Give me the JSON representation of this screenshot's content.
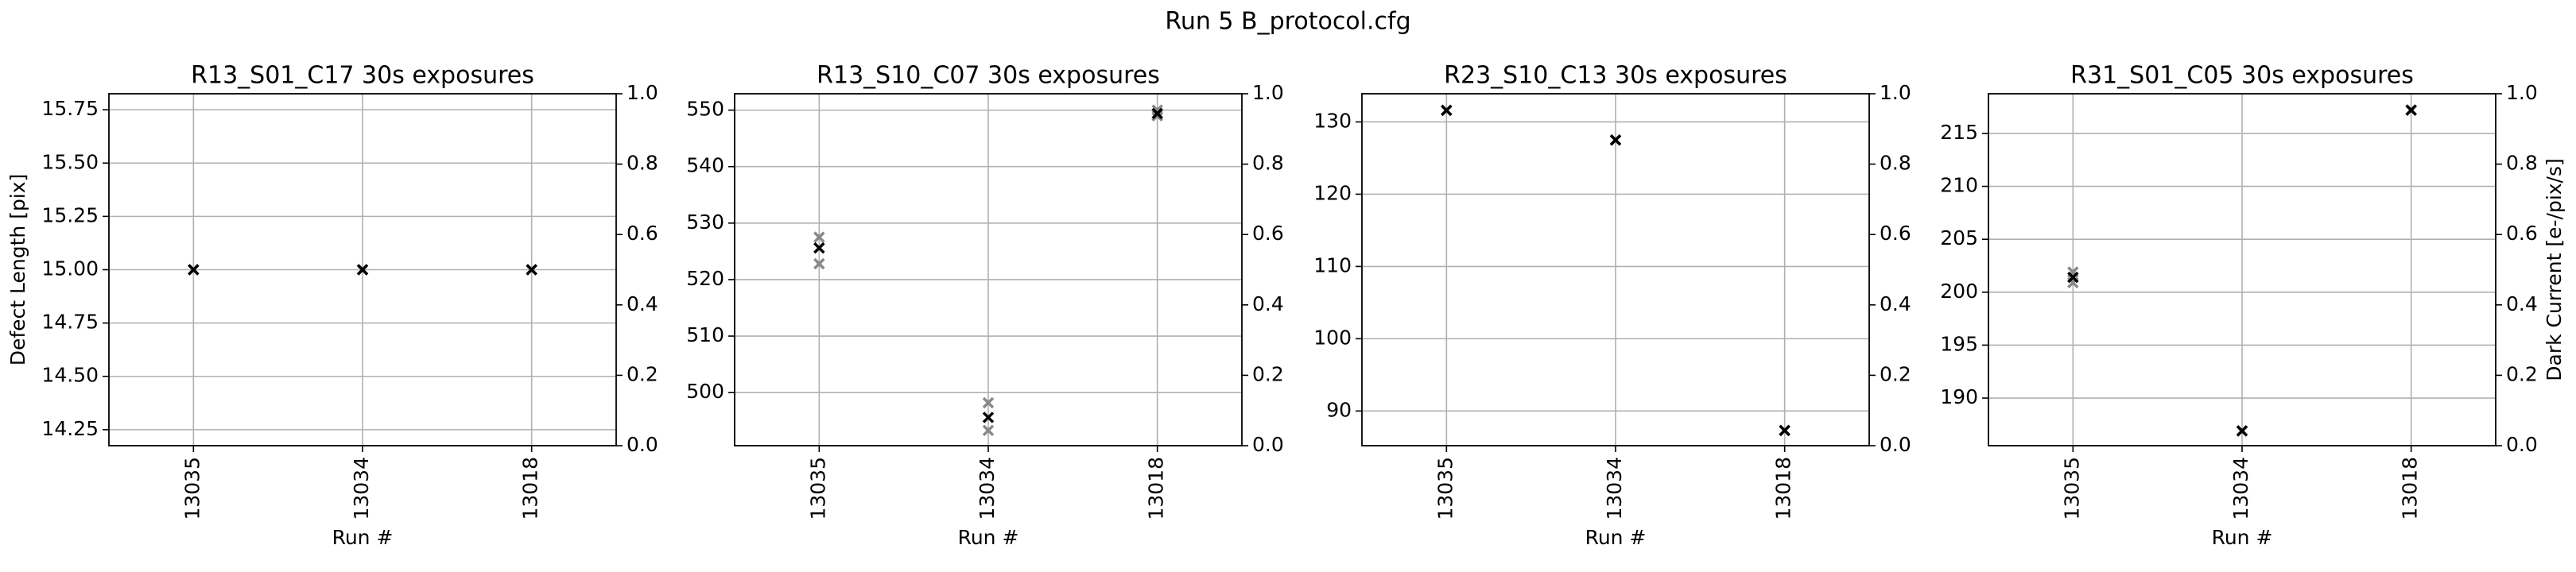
{
  "title": "Run 5 B_protocol.cfg",
  "chart_data": [
    {
      "type": "scatter",
      "title": "R13_S01_C17 30s exposures",
      "xlabel": "Run #",
      "ylabel": "Defect Length [pix]",
      "categories": [
        "13035",
        "13034",
        "13018"
      ],
      "series": [
        {
          "color": "#888888",
          "values": [
            15,
            15,
            15
          ]
        },
        {
          "color": "#888888",
          "values": [
            15,
            15,
            15
          ]
        },
        {
          "color": "#000000",
          "values": [
            15,
            15,
            15
          ]
        }
      ],
      "ylim": [
        14.175,
        15.825
      ],
      "yticks": [
        14.25,
        {
          "value": 14.5,
          "label": "14.50"
        },
        14.75,
        {
          "value": 15,
          "label": "15.00"
        },
        15.25,
        {
          "value": 15.5,
          "label": "15.50"
        },
        15.75
      ],
      "y2lim": [
        0,
        1
      ],
      "y2ticks": [
        {
          "value": 0,
          "label": "0.0"
        },
        0.2,
        0.4,
        0.6,
        0.8,
        {
          "value": 1,
          "label": "1.0"
        }
      ],
      "grid": true
    },
    {
      "type": "scatter",
      "title": "R13_S10_C07 30s exposures",
      "xlabel": "Run #",
      "categories": [
        "13035",
        "13034",
        "13018"
      ],
      "series": [
        {
          "color": "#888888",
          "values": [
            527.5,
            498.2,
            550
          ]
        },
        {
          "color": "#888888",
          "values": [
            522.8,
            493.3,
            549
          ]
        },
        {
          "color": "#000000",
          "values": [
            525.6,
            495.6,
            549.4
          ]
        }
      ],
      "ylim": [
        490.6,
        552.9
      ],
      "yticks": [
        500,
        510,
        520,
        530,
        540,
        550
      ],
      "y2lim": [
        0,
        1
      ],
      "y2ticks": [
        {
          "value": 0,
          "label": "0.0"
        },
        0.2,
        0.4,
        0.6,
        0.8,
        {
          "value": 1,
          "label": "1.0"
        }
      ],
      "grid": true
    },
    {
      "type": "scatter",
      "title": "R23_S10_C13 30s exposures",
      "xlabel": "Run #",
      "categories": [
        "13035",
        "13034",
        "13018"
      ],
      "series": [
        {
          "color": "#888888",
          "values": [
            131.6,
            127.5,
            87.3
          ]
        },
        {
          "color": "#888888",
          "values": [
            131.6,
            127.5,
            87.3
          ]
        },
        {
          "color": "#000000",
          "values": [
            131.6,
            127.5,
            87.3
          ]
        }
      ],
      "ylim": [
        85.2,
        133.9
      ],
      "yticks": [
        90,
        100,
        110,
        120,
        130
      ],
      "y2lim": [
        0,
        1
      ],
      "y2ticks": [
        {
          "value": 0,
          "label": "0.0"
        },
        0.2,
        0.4,
        0.6,
        0.8,
        {
          "value": 1,
          "label": "1.0"
        }
      ],
      "grid": true
    },
    {
      "type": "scatter",
      "title": "R31_S01_C05 30s exposures",
      "xlabel": "Run #",
      "y2label": "Dark Current [e-/pix/s]",
      "categories": [
        "13035",
        "13034",
        "13018"
      ],
      "series": [
        {
          "color": "#888888",
          "values": [
            201.9,
            186.9,
            217.2
          ]
        },
        {
          "color": "#888888",
          "values": [
            200.9,
            186.9,
            217.2
          ]
        },
        {
          "color": "#000000",
          "values": [
            201.4,
            186.9,
            217.2
          ]
        }
      ],
      "ylim": [
        185.5,
        218.75
      ],
      "yticks": [
        190,
        195,
        200,
        205,
        210,
        215
      ],
      "y2lim": [
        0,
        1
      ],
      "y2ticks": [
        {
          "value": 0,
          "label": "0.0"
        },
        0.2,
        0.4,
        0.6,
        0.8,
        {
          "value": 1,
          "label": "1.0"
        }
      ],
      "grid": true
    }
  ]
}
